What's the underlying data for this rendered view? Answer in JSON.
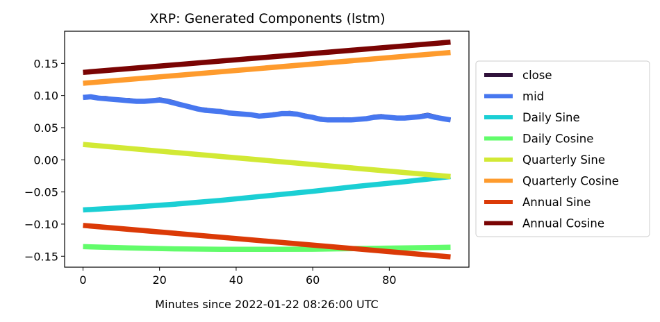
{
  "chart_data": {
    "type": "line",
    "title": "XRP: Generated Components (lstm)",
    "xlabel": "Minutes since 2022-01-22 08:26:00 UTC",
    "ylabel": "",
    "xlim": [
      -4.8,
      100.8
    ],
    "ylim": [
      -0.167,
      0.2
    ],
    "x_ticks": [
      0,
      20,
      40,
      60,
      80
    ],
    "y_ticks": [
      0.15,
      0.1,
      0.05,
      0.0,
      -0.05,
      -0.1,
      -0.15
    ],
    "y_tick_labels": [
      "0.15",
      "0.10",
      "0.05",
      "0.00",
      "−0.05",
      "−0.10",
      "−0.15"
    ],
    "grid": false,
    "legend_position": "right, outside plot",
    "series": [
      {
        "name": "close",
        "color": "#30123b",
        "x": [
          0,
          2,
          4,
          6,
          8,
          10,
          12,
          14,
          16,
          18,
          20,
          22,
          24,
          26,
          28,
          30,
          32,
          34,
          36,
          38,
          40,
          42,
          44,
          46,
          48,
          50,
          52,
          54,
          56,
          58,
          60,
          62,
          64,
          66,
          68,
          70,
          72,
          74,
          76,
          78,
          80,
          82,
          84,
          86,
          88,
          90,
          92,
          94,
          96
        ],
        "y": [
          0.098,
          0.098,
          0.096,
          0.096,
          0.094,
          0.093,
          0.093,
          0.091,
          0.091,
          0.092,
          0.094,
          0.092,
          0.089,
          0.085,
          0.082,
          0.079,
          0.078,
          0.076,
          0.076,
          0.073,
          0.072,
          0.071,
          0.07,
          0.068,
          0.069,
          0.071,
          0.072,
          0.073,
          0.071,
          0.069,
          0.066,
          0.064,
          0.062,
          0.062,
          0.063,
          0.062,
          0.063,
          0.064,
          0.067,
          0.068,
          0.066,
          0.065,
          0.065,
          0.066,
          0.068,
          0.07,
          0.067,
          0.064,
          0.062
        ]
      },
      {
        "name": "mid",
        "color": "#4777ef",
        "x": [
          0,
          2,
          4,
          6,
          8,
          10,
          12,
          14,
          16,
          18,
          20,
          22,
          24,
          26,
          28,
          30,
          32,
          34,
          36,
          38,
          40,
          42,
          44,
          46,
          48,
          50,
          52,
          54,
          56,
          58,
          60,
          62,
          64,
          66,
          68,
          70,
          72,
          74,
          76,
          78,
          80,
          82,
          84,
          86,
          88,
          90,
          92,
          94,
          96
        ],
        "y": [
          0.097,
          0.098,
          0.096,
          0.095,
          0.094,
          0.093,
          0.092,
          0.091,
          0.091,
          0.092,
          0.093,
          0.091,
          0.088,
          0.085,
          0.082,
          0.079,
          0.077,
          0.076,
          0.075,
          0.073,
          0.072,
          0.071,
          0.07,
          0.068,
          0.069,
          0.07,
          0.072,
          0.072,
          0.071,
          0.068,
          0.066,
          0.063,
          0.062,
          0.062,
          0.062,
          0.062,
          0.063,
          0.064,
          0.066,
          0.067,
          0.066,
          0.065,
          0.065,
          0.066,
          0.067,
          0.069,
          0.066,
          0.064,
          0.062
        ]
      },
      {
        "name": "Daily Sine",
        "color": "#1bcfd4",
        "x": [
          0,
          12,
          24,
          36,
          48,
          60,
          72,
          84,
          96
        ],
        "y": [
          -0.078,
          -0.074,
          -0.069,
          -0.063,
          -0.056,
          -0.049,
          -0.041,
          -0.034,
          -0.026
        ]
      },
      {
        "name": "Daily Cosine",
        "color": "#62fc6b",
        "x": [
          0,
          12,
          24,
          36,
          48,
          60,
          72,
          84,
          96
        ],
        "y": [
          -0.135,
          -0.137,
          -0.1385,
          -0.1392,
          -0.1393,
          -0.139,
          -0.138,
          -0.137,
          -0.136
        ]
      },
      {
        "name": "Quarterly Sine",
        "color": "#d2e935",
        "x": [
          0,
          96
        ],
        "y": [
          0.024,
          -0.026
        ]
      },
      {
        "name": "Quarterly Cosine",
        "color": "#fe9b2d",
        "x": [
          0,
          96
        ],
        "y": [
          0.119,
          0.167
        ]
      },
      {
        "name": "Annual Sine",
        "color": "#db3a07",
        "x": [
          0,
          96
        ],
        "y": [
          -0.102,
          -0.151
        ]
      },
      {
        "name": "Annual Cosine",
        "color": "#7a0403",
        "x": [
          0,
          96
        ],
        "y": [
          0.136,
          0.183
        ]
      }
    ]
  }
}
